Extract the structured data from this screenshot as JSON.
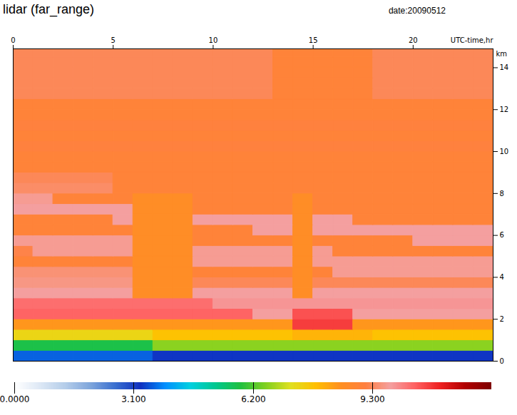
{
  "chart_data": {
    "type": "heatmap",
    "title": "lidar (far_range)",
    "subtitle": "date:20090512",
    "xlabel": "UTC-time,hr",
    "ylabel": "km",
    "xlim": [
      0,
      24
    ],
    "xticks": [
      0,
      5,
      10,
      15,
      20
    ],
    "ylim": [
      0,
      14.9
    ],
    "yticks": [
      0,
      2,
      4,
      6,
      8,
      10,
      12,
      14
    ],
    "x": [
      0,
      1,
      2,
      3,
      4,
      5,
      6,
      7,
      8,
      9,
      10,
      11,
      12,
      13,
      14,
      15,
      16,
      17,
      18,
      19,
      20,
      21,
      22,
      23,
      24
    ],
    "y": [
      0,
      0.5,
      1,
      1.5,
      2,
      2.5,
      3,
      3.5,
      4,
      4.5,
      5,
      5.5,
      6,
      6.5,
      7,
      7.5,
      8,
      8.5,
      9,
      9.5,
      10,
      10.5,
      11,
      11.5,
      12,
      12.5,
      13,
      13.5,
      14,
      14.5,
      15
    ],
    "values": [
      [
        3.6,
        3.6,
        3.6,
        3.6,
        3.6,
        3.6,
        3.6,
        3.3,
        3.3,
        3.3,
        3.3,
        3.3,
        3.3,
        3.3,
        3.3,
        3.3,
        3.3,
        3.3,
        3.3,
        3.3,
        3.3,
        3.3,
        3.3,
        3.3
      ],
      [
        5.8,
        5.8,
        5.8,
        5.8,
        5.8,
        5.8,
        5.8,
        6.6,
        6.6,
        6.6,
        6.6,
        6.6,
        6.6,
        6.6,
        6.6,
        6.6,
        6.6,
        6.6,
        6.6,
        6.6,
        6.6,
        6.6,
        6.6,
        6.6
      ],
      [
        7.4,
        7.4,
        7.4,
        7.4,
        7.4,
        7.4,
        7.4,
        7.8,
        7.8,
        7.8,
        7.8,
        7.8,
        7.8,
        7.8,
        8.0,
        8.0,
        8.0,
        8.0,
        7.8,
        7.8,
        7.8,
        7.8,
        7.8,
        7.8
      ],
      [
        8.4,
        8.4,
        8.4,
        8.4,
        8.4,
        8.4,
        8.4,
        8.4,
        8.4,
        8.4,
        8.4,
        8.4,
        8.4,
        8.4,
        10.8,
        10.8,
        10.8,
        8.4,
        8.4,
        8.4,
        8.4,
        8.4,
        8.4,
        8.4
      ],
      [
        10.4,
        10.4,
        10.4,
        10.4,
        10.4,
        10.4,
        10.4,
        10.4,
        10.4,
        10.4,
        10.4,
        10.4,
        9.8,
        9.8,
        10.6,
        10.6,
        10.6,
        9.8,
        9.8,
        9.8,
        9.8,
        9.8,
        9.8,
        9.8
      ],
      [
        10.3,
        10.3,
        10.3,
        10.3,
        10.3,
        10.3,
        10.3,
        10.3,
        10.3,
        10.3,
        9.9,
        9.9,
        9.9,
        9.9,
        9.9,
        9.9,
        9.9,
        9.9,
        9.9,
        9.9,
        9.9,
        9.9,
        9.9,
        9.9
      ],
      [
        9.8,
        9.8,
        9.8,
        9.8,
        9.8,
        9.8,
        8.6,
        8.6,
        8.6,
        9.8,
        9.8,
        9.8,
        9.8,
        9.8,
        8.6,
        9.8,
        9.8,
        9.8,
        9.8,
        9.8,
        9.8,
        9.8,
        9.8,
        9.8
      ],
      [
        9.6,
        9.6,
        9.6,
        9.6,
        9.6,
        9.6,
        8.6,
        8.6,
        8.6,
        9.3,
        9.3,
        9.3,
        9.3,
        9.3,
        8.6,
        9.3,
        9.3,
        9.3,
        9.3,
        9.3,
        9.3,
        9.3,
        9.3,
        9.3
      ],
      [
        9.5,
        9.5,
        9.5,
        9.5,
        9.5,
        9.5,
        8.6,
        8.6,
        8.6,
        9.0,
        9.0,
        9.0,
        9.0,
        9.0,
        8.6,
        9.0,
        9.7,
        9.7,
        9.7,
        9.7,
        9.7,
        9.7,
        9.7,
        9.7
      ],
      [
        9.0,
        9.0,
        9.0,
        9.0,
        9.0,
        9.0,
        8.6,
        8.6,
        8.6,
        9.7,
        9.7,
        9.7,
        9.7,
        9.7,
        8.6,
        9.7,
        9.7,
        9.7,
        9.7,
        9.7,
        9.7,
        9.7,
        9.7,
        9.7
      ],
      [
        9.2,
        9.7,
        9.7,
        9.7,
        9.7,
        9.7,
        8.6,
        8.6,
        8.6,
        9.7,
        9.7,
        9.7,
        9.7,
        9.7,
        8.6,
        9.7,
        9.0,
        9.0,
        9.0,
        9.0,
        9.0,
        9.0,
        9.0,
        9.0
      ],
      [
        9.7,
        9.7,
        9.7,
        9.7,
        9.7,
        9.7,
        8.6,
        8.6,
        8.6,
        9.0,
        9.0,
        9.0,
        9.0,
        9.0,
        8.6,
        9.0,
        9.0,
        9.0,
        9.0,
        9.0,
        9.8,
        9.8,
        9.8,
        9.8
      ],
      [
        9.0,
        9.0,
        9.0,
        9.0,
        9.0,
        9.0,
        8.6,
        8.6,
        8.6,
        9.0,
        9.0,
        9.0,
        9.8,
        9.8,
        8.6,
        9.8,
        9.8,
        9.8,
        9.8,
        9.8,
        9.8,
        9.8,
        9.8,
        9.8
      ],
      [
        9.0,
        9.0,
        9.0,
        9.0,
        9.0,
        9.8,
        8.6,
        8.6,
        8.6,
        9.8,
        9.8,
        9.8,
        9.8,
        9.8,
        8.6,
        9.8,
        9.8,
        9.0,
        9.0,
        9.0,
        9.0,
        9.0,
        9.0,
        9.0
      ],
      [
        9.8,
        9.8,
        9.8,
        9.8,
        9.8,
        9.8,
        8.6,
        8.6,
        8.6,
        9.0,
        9.0,
        9.0,
        9.0,
        9.0,
        8.6,
        9.0,
        9.0,
        9.0,
        9.0,
        9.0,
        9.0,
        9.0,
        9.0,
        9.0
      ],
      [
        9.7,
        9.7,
        9.0,
        9.0,
        9.0,
        9.0,
        8.6,
        8.6,
        8.6,
        9.0,
        9.0,
        9.0,
        9.0,
        9.0,
        8.6,
        9.0,
        9.0,
        9.0,
        9.0,
        9.0,
        9.0,
        9.0,
        9.0,
        9.0
      ],
      [
        9.4,
        9.4,
        9.4,
        9.4,
        9.4,
        9.0,
        9.0,
        9.0,
        9.0,
        9.0,
        9.0,
        9.0,
        9.0,
        9.0,
        9.0,
        9.0,
        9.0,
        9.0,
        9.0,
        9.0,
        9.0,
        9.0,
        9.0,
        9.0
      ],
      [
        9.3,
        9.3,
        9.3,
        9.3,
        9.3,
        9.0,
        9.0,
        9.0,
        9.0,
        9.0,
        9.0,
        9.0,
        9.0,
        9.0,
        9.0,
        9.0,
        9.0,
        9.0,
        9.0,
        9.0,
        9.0,
        9.0,
        9.0,
        9.0
      ],
      [
        9.0,
        9.0,
        9.0,
        9.0,
        9.0,
        9.0,
        9.0,
        9.0,
        9.0,
        9.0,
        9.0,
        9.0,
        9.0,
        9.0,
        9.0,
        9.0,
        9.0,
        9.0,
        9.0,
        9.0,
        9.0,
        9.0,
        9.0,
        9.0
      ],
      [
        9.0,
        9.0,
        9.0,
        9.0,
        9.0,
        9.0,
        9.0,
        9.0,
        9.0,
        9.0,
        9.0,
        9.0,
        9.0,
        9.0,
        9.0,
        9.0,
        9.0,
        9.0,
        9.0,
        9.0,
        9.0,
        9.0,
        9.0,
        9.0
      ],
      [
        9.1,
        9.1,
        9.1,
        9.1,
        9.1,
        9.1,
        9.1,
        9.1,
        9.1,
        9.1,
        9.1,
        9.1,
        9.1,
        9.1,
        9.1,
        9.1,
        9.1,
        9.1,
        9.1,
        9.1,
        9.1,
        9.1,
        9.1,
        9.1
      ],
      [
        9.0,
        9.0,
        9.0,
        9.0,
        9.0,
        9.0,
        9.0,
        9.0,
        9.0,
        9.0,
        9.0,
        9.0,
        9.0,
        9.0,
        9.0,
        9.0,
        9.0,
        9.0,
        9.0,
        9.0,
        9.0,
        9.0,
        9.0,
        9.0
      ],
      [
        9.1,
        9.1,
        9.1,
        9.1,
        9.1,
        9.1,
        9.1,
        9.1,
        9.1,
        9.1,
        9.1,
        9.1,
        9.1,
        9.1,
        9.1,
        9.1,
        9.1,
        9.1,
        9.1,
        9.1,
        9.1,
        9.1,
        9.1,
        9.1
      ],
      [
        9.0,
        9.0,
        9.0,
        9.0,
        9.0,
        9.0,
        9.0,
        9.0,
        9.0,
        9.0,
        9.0,
        9.0,
        9.0,
        9.0,
        9.0,
        9.0,
        9.0,
        9.0,
        9.0,
        9.0,
        9.0,
        9.0,
        9.0,
        9.0
      ],
      [
        9.0,
        9.0,
        9.0,
        9.0,
        9.0,
        9.0,
        9.0,
        9.0,
        9.0,
        9.0,
        9.0,
        9.0,
        9.0,
        9.0,
        9.0,
        9.0,
        9.0,
        9.0,
        9.0,
        9.0,
        9.0,
        9.0,
        9.0,
        9.0
      ],
      [
        9.3,
        9.3,
        9.3,
        9.3,
        9.3,
        9.3,
        9.3,
        9.3,
        9.3,
        9.3,
        9.3,
        9.3,
        9.3,
        9.0,
        9.0,
        9.0,
        9.0,
        9.0,
        9.3,
        9.3,
        9.3,
        9.3,
        9.3,
        9.3
      ],
      [
        9.3,
        9.3,
        9.3,
        9.3,
        9.3,
        9.3,
        9.3,
        9.3,
        9.3,
        9.3,
        9.3,
        9.3,
        9.3,
        9.0,
        9.0,
        9.0,
        9.0,
        9.0,
        9.3,
        9.3,
        9.3,
        9.3,
        9.3,
        9.3
      ],
      [
        9.3,
        9.3,
        9.3,
        9.3,
        9.3,
        9.3,
        9.3,
        9.3,
        9.3,
        9.3,
        9.3,
        9.3,
        9.3,
        9.0,
        9.0,
        9.0,
        9.0,
        9.0,
        9.3,
        9.3,
        9.3,
        9.3,
        9.3,
        9.3
      ],
      [
        9.3,
        9.3,
        9.3,
        9.3,
        9.3,
        9.3,
        9.3,
        9.3,
        9.3,
        9.3,
        9.3,
        9.3,
        9.3,
        9.0,
        9.0,
        9.0,
        9.0,
        9.0,
        9.3,
        9.3,
        9.3,
        9.3,
        9.3,
        9.3
      ],
      [
        9.3,
        9.3,
        9.3,
        9.3,
        9.3,
        9.3,
        9.3,
        9.3,
        9.3,
        9.3,
        9.3,
        9.3,
        9.3,
        9.0,
        9.0,
        9.0,
        9.0,
        9.0,
        9.3,
        9.3,
        9.3,
        9.3,
        9.3,
        9.3
      ]
    ],
    "colorbar_range": [
      0,
      12.4
    ],
    "colorbar_ticks": [
      {
        "value": 0,
        "label": "0.0000"
      },
      {
        "value": 3.1,
        "label": "3.100"
      },
      {
        "value": 6.2,
        "label": "6.200"
      },
      {
        "value": 9.3,
        "label": "9.300"
      }
    ]
  }
}
